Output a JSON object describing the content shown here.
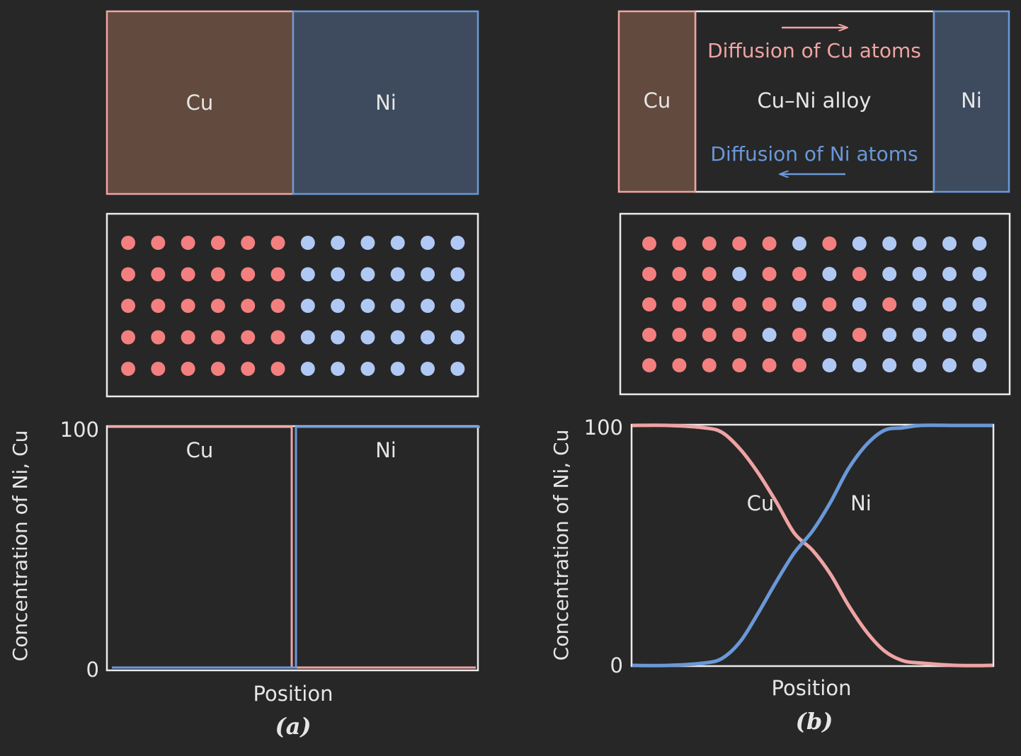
{
  "colors": {
    "background": "#272727",
    "cu_line": "#f0a3a3",
    "ni_line": "#6a98d8",
    "cu_fill": "#634a3e",
    "ni_fill": "#3e4b5e",
    "cu_atom": "#f47f7f",
    "ni_atom": "#b0c8f4",
    "frame": "#ebebeb",
    "text": "#e6e6e6"
  },
  "panel_a": {
    "block": {
      "cu_label": "Cu",
      "ni_label": "Ni"
    },
    "atoms_grid": [
      "CCCCCCNNNNNN",
      "CCCCCCNNNNNN",
      "CCCCCCNNNNNN",
      "CCCCCCNNNNNN",
      "CCCCCCNNNNNN"
    ],
    "chart_data": {
      "type": "line",
      "ylabel": "Concentration of Ni, Cu",
      "xlabel": "Position",
      "ylim": [
        0,
        100
      ],
      "yticks": [
        "100",
        "0"
      ],
      "series": [
        {
          "name": "Cu",
          "x": [
            0,
            0.5,
            0.5,
            1
          ],
          "values": [
            100,
            100,
            0,
            0
          ]
        },
        {
          "name": "Ni",
          "x": [
            0,
            0.5,
            0.5,
            1
          ],
          "values": [
            0,
            0,
            100,
            100
          ]
        }
      ]
    },
    "caption": "(a)"
  },
  "panel_b": {
    "block": {
      "cu_label": "Cu",
      "ni_label": "Ni",
      "alloy_label": "Cu–Ni alloy",
      "cu_diffusion": "Diffusion of Cu atoms",
      "ni_diffusion": "Diffusion of Ni atoms"
    },
    "atoms_grid": [
      "CCCCCNCNNNNN",
      "CCCNCCNCNNNN",
      "CCCCCNCNCNNN",
      "CCCCNCNCNNNN",
      "CCCCCCNNNNNN"
    ],
    "chart_data": {
      "type": "line",
      "ylabel": "Concentration of Ni, Cu",
      "xlabel": "Position",
      "ylim": [
        0,
        100
      ],
      "yticks": [
        "100",
        "0"
      ],
      "series": [
        {
          "name": "Cu",
          "x": [
            0,
            0.1,
            0.2,
            0.25,
            0.3,
            0.35,
            0.4,
            0.45,
            0.5,
            0.55,
            0.6,
            0.65,
            0.7,
            0.75,
            0.8,
            0.9,
            1
          ],
          "values": [
            100,
            100,
            99,
            97,
            90,
            80,
            68,
            55,
            48,
            38,
            25,
            14,
            6,
            2,
            1,
            0,
            0
          ]
        },
        {
          "name": "Ni",
          "x": [
            0,
            0.1,
            0.2,
            0.25,
            0.3,
            0.35,
            0.4,
            0.45,
            0.5,
            0.55,
            0.6,
            0.65,
            0.7,
            0.75,
            0.8,
            0.9,
            1
          ],
          "values": [
            0,
            0,
            1,
            3,
            10,
            22,
            35,
            47,
            56,
            68,
            82,
            92,
            98,
            99,
            100,
            100,
            100
          ]
        }
      ]
    },
    "caption": "(b)"
  }
}
